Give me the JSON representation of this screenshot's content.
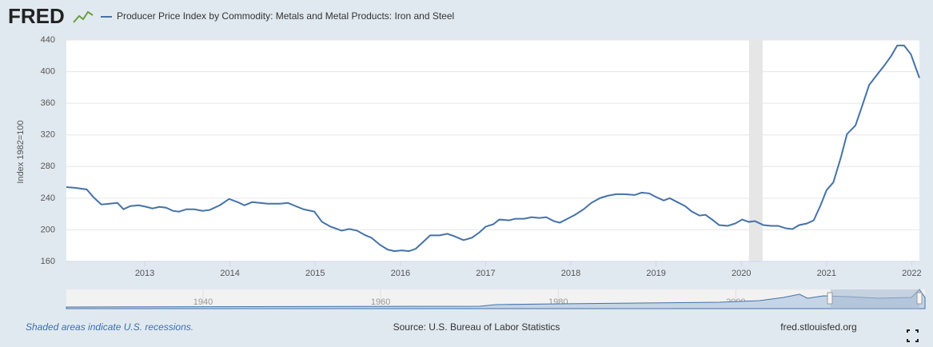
{
  "logo": "FRED",
  "chart_data": {
    "type": "line",
    "y_label": "Index 1982=100",
    "x": [
      2012.08,
      2012.19,
      2012.32,
      2012.4,
      2012.49,
      2012.59,
      2012.68,
      2012.75,
      2012.83,
      2012.93,
      2013.02,
      2013.09,
      2013.17,
      2013.25,
      2013.33,
      2013.4,
      2013.49,
      2013.58,
      2013.68,
      2013.76,
      2013.88,
      2013.99,
      2014.09,
      2014.17,
      2014.26,
      2014.35,
      2014.44,
      2014.59,
      2014.68,
      2014.77,
      2014.86,
      2014.99,
      2015.08,
      2015.18,
      2015.31,
      2015.4,
      2015.49,
      2015.59,
      2015.66,
      2015.76,
      2015.85,
      2015.93,
      2016.02,
      2016.1,
      2016.18,
      2016.27,
      2016.35,
      2016.46,
      2016.55,
      2016.63,
      2016.74,
      2016.84,
      2016.93,
      2017.0,
      2017.09,
      2017.16,
      2017.27,
      2017.35,
      2017.45,
      2017.54,
      2017.63,
      2017.71,
      2017.8,
      2017.87,
      2017.96,
      2018.05,
      2018.15,
      2018.24,
      2018.34,
      2018.43,
      2018.53,
      2018.63,
      2018.75,
      2018.83,
      2018.92,
      2018.99,
      2019.09,
      2019.16,
      2019.25,
      2019.34,
      2019.42,
      2019.51,
      2019.58,
      2019.67,
      2019.74,
      2019.84,
      2019.93,
      2020.01,
      2020.09,
      2020.16,
      2020.26,
      2020.35,
      2020.43,
      2020.52,
      2020.6,
      2020.68,
      2020.77,
      2020.85,
      2020.93,
      2021.0,
      2021.08,
      2021.17,
      2021.24,
      2021.34,
      2021.41,
      2021.5,
      2021.6,
      2021.68,
      2021.76,
      2021.83,
      2021.91,
      2021.99,
      2022.09
    ],
    "series": [
      {
        "name": "Producer Price Index by Commodity: Metals and Metal Products: Iron and Steel",
        "color": "#4572a7",
        "values": [
          254,
          253,
          251,
          241,
          232,
          233,
          234,
          226,
          230,
          231,
          229,
          227,
          229,
          228,
          224,
          223,
          226,
          226,
          224,
          225,
          231,
          239,
          235,
          231,
          235,
          234,
          233,
          233,
          234,
          230,
          226,
          223,
          210,
          204,
          199,
          201,
          199,
          193,
          190,
          181,
          175,
          173,
          174,
          173,
          176,
          185,
          193,
          193,
          195,
          192,
          187,
          190,
          197,
          204,
          207,
          213,
          212,
          214,
          214,
          216,
          215,
          216,
          211,
          209,
          214,
          219,
          226,
          234,
          240,
          243,
          245,
          245,
          244,
          247,
          246,
          242,
          237,
          240,
          235,
          230,
          223,
          218,
          219,
          212,
          206,
          205,
          208,
          213,
          210,
          211,
          206,
          205,
          205,
          202,
          201,
          206,
          208,
          212,
          231,
          250,
          260,
          292,
          321,
          332,
          354,
          383,
          397,
          408,
          420,
          433,
          433,
          422,
          392
        ]
      }
    ],
    "recessions": [
      [
        2020.09,
        2020.25
      ]
    ],
    "xlim": [
      2012.08,
      2022.09
    ],
    "xticks": [
      2013,
      2014,
      2015,
      2016,
      2017,
      2018,
      2019,
      2020,
      2021,
      2022
    ],
    "ylim": [
      160,
      440
    ],
    "yticks": [
      160,
      200,
      240,
      280,
      320,
      360,
      400,
      440
    ],
    "grid": true,
    "navigator": {
      "xlim": [
        1924.6,
        2021.3
      ],
      "xticks": [
        1940,
        1960,
        1980,
        2000
      ]
    },
    "footer_left": "Shaded areas indicate U.S. recessions.",
    "source": "Source: U.S. Bureau of Labor Statistics",
    "footer_right": "fred.stlouisfed.org"
  }
}
